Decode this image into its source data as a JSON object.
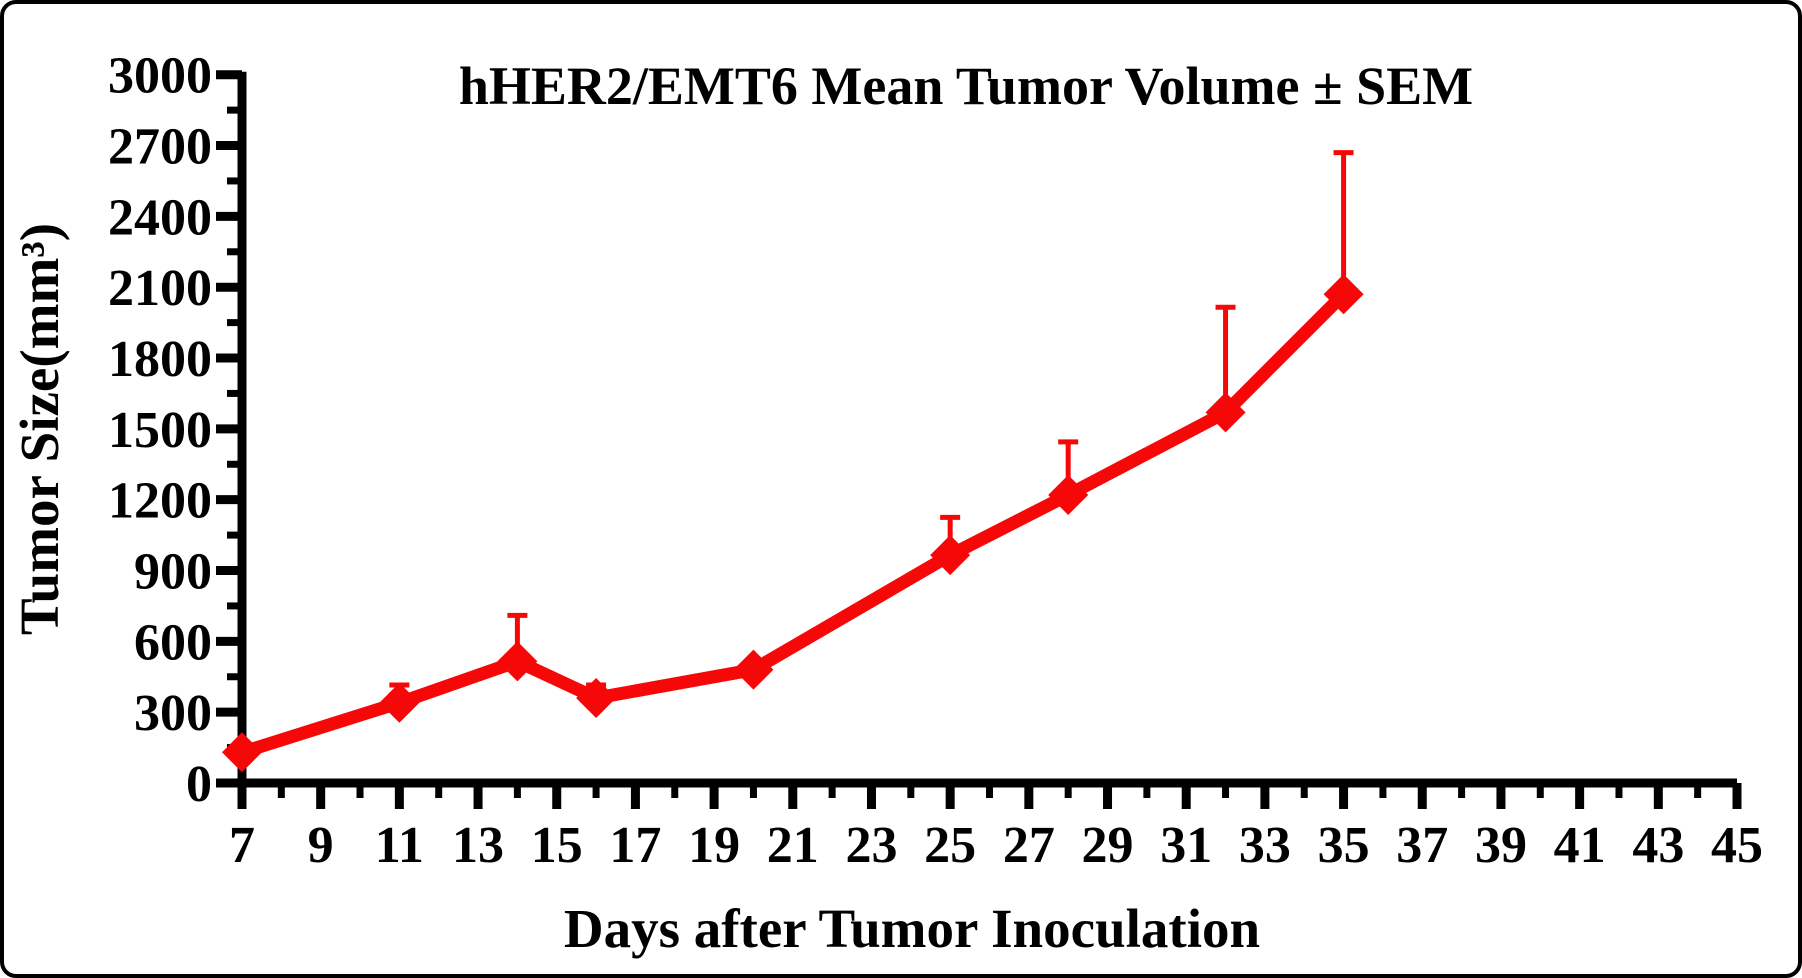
{
  "chart_data": {
    "type": "line",
    "title": "hHER2/EMT6 Mean Tumor Volume ± SEM",
    "xlabel": "Days after Tumor Inoculation",
    "ylabel": "Tumor Size(mm³)",
    "x": [
      7,
      11,
      14,
      16,
      20,
      25,
      28,
      32,
      35
    ],
    "series": [
      {
        "name": "hHER2/EMT6 mean tumor volume",
        "values": [
          130,
          340,
          515,
          360,
          480,
          965,
          1220,
          1570,
          2070
        ],
        "sem_upper": [
          0,
          75,
          195,
          55,
          0,
          160,
          225,
          445,
          600
        ],
        "color": "#f70808",
        "marker": "diamond"
      }
    ],
    "xlim": [
      7,
      45
    ],
    "ylim": [
      0,
      3000
    ],
    "x_major_ticks": [
      7,
      9,
      11,
      13,
      15,
      17,
      19,
      21,
      23,
      25,
      27,
      29,
      31,
      33,
      35,
      37,
      39,
      41,
      43,
      45
    ],
    "x_minor_tick_step": 1,
    "y_major_ticks": [
      0,
      300,
      600,
      900,
      1200,
      1500,
      1800,
      2100,
      2400,
      2700,
      3000
    ],
    "y_minor_tick_step": 150,
    "grid": "off",
    "legend": "none",
    "error_bars": "upper-only",
    "axis_color": "#000000"
  }
}
